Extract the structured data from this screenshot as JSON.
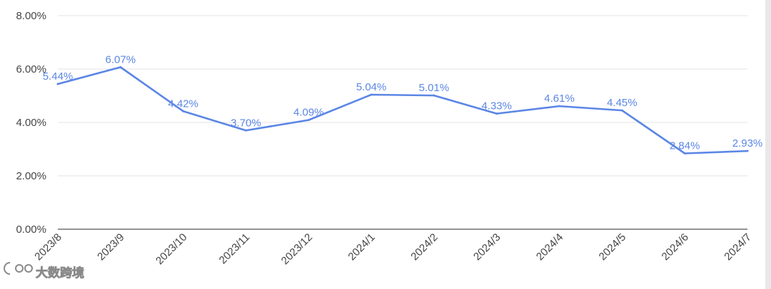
{
  "chart_data": {
    "type": "line",
    "categories": [
      "2023/8",
      "2023/9",
      "2023/10",
      "2023/11",
      "2023/12",
      "2024/1",
      "2024/2",
      "2024/3",
      "2024/4",
      "2024/5",
      "2024/6",
      "2024/7"
    ],
    "series": [
      {
        "values": [
          5.44,
          6.07,
          4.42,
          3.7,
          4.09,
          5.04,
          5.01,
          4.33,
          4.61,
          4.45,
          2.84,
          2.93
        ],
        "labels": [
          "5.44%",
          "6.07%",
          "4.42%",
          "3.70%",
          "4.09%",
          "5.04%",
          "5.01%",
          "4.33%",
          "4.61%",
          "4.45%",
          "2.84%",
          "2.93%"
        ],
        "color": "#5b86e5"
      }
    ],
    "ylim": [
      0,
      8
    ],
    "yticks": [
      0,
      2,
      4,
      6,
      8
    ],
    "ytick_labels": [
      "0.00%",
      "2.00%",
      "4.00%",
      "6.00%",
      "8.00%"
    ],
    "grid": true,
    "legend": "none",
    "title": "",
    "xlabel": "",
    "ylabel": ""
  },
  "watermark": {
    "text": "大数跨境"
  }
}
